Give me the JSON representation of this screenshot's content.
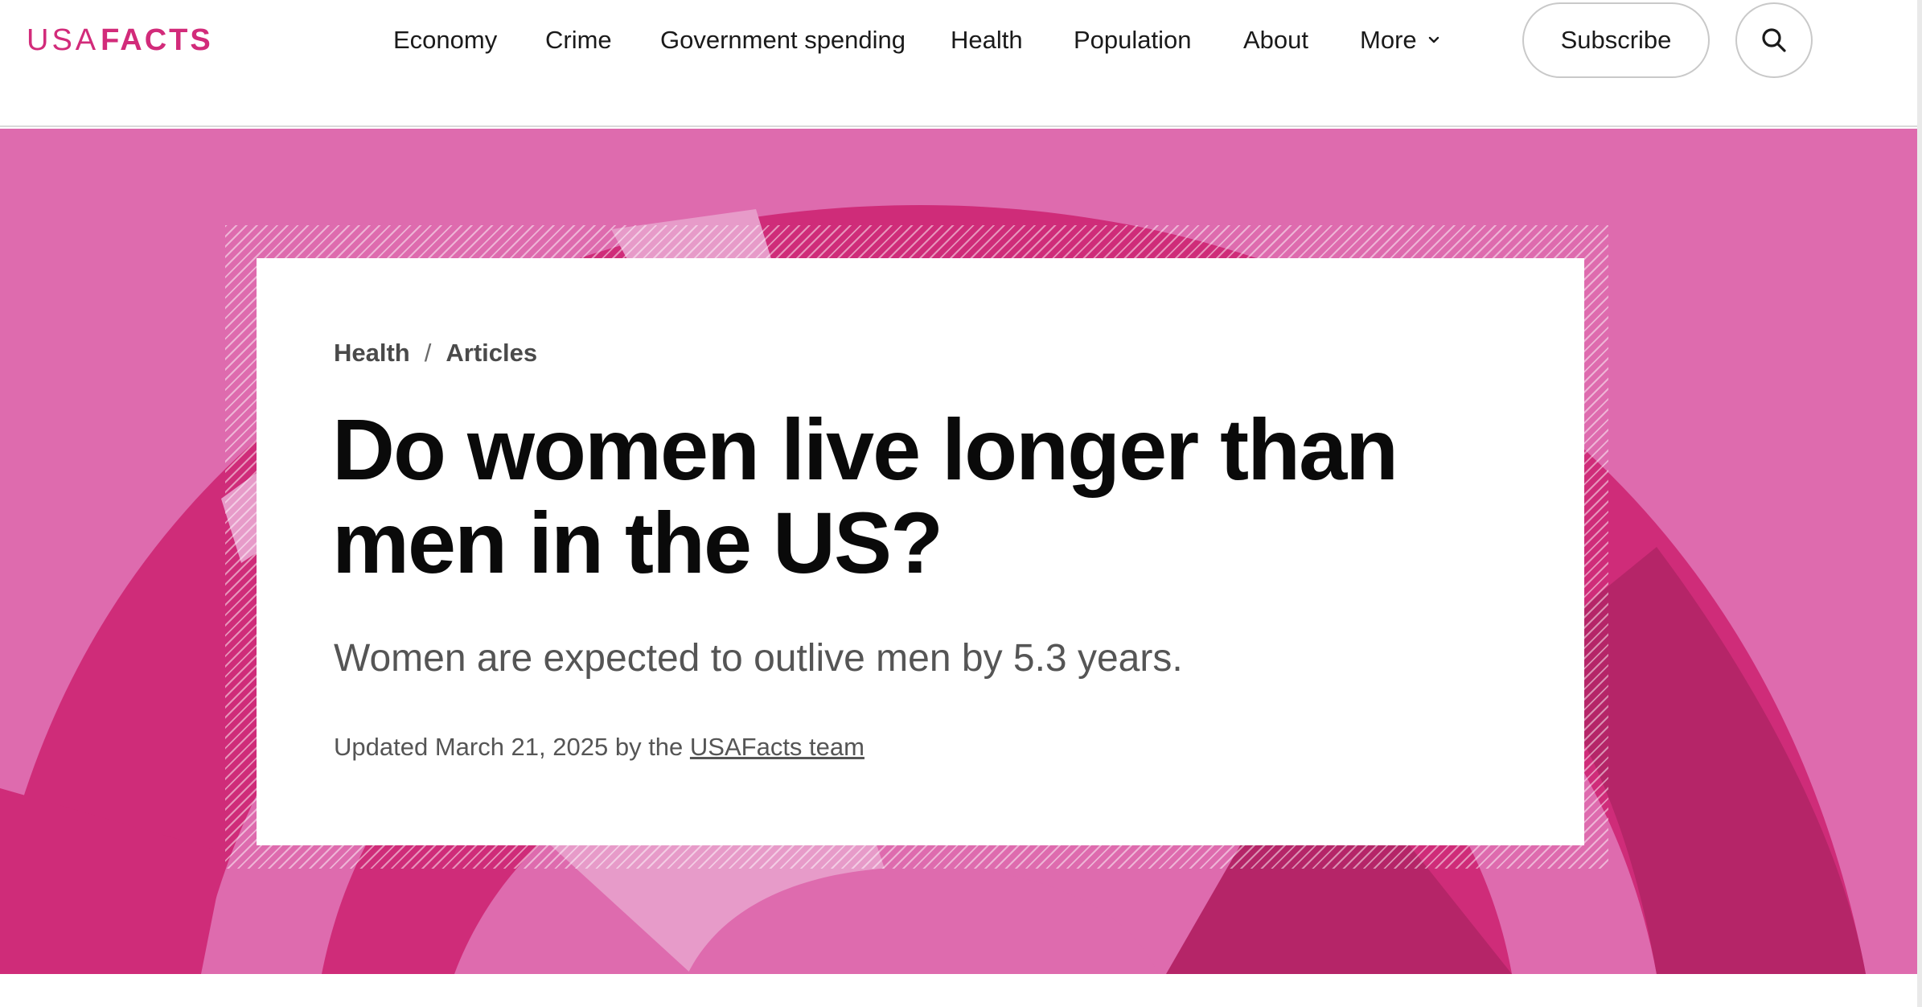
{
  "logo": {
    "usa": "USA",
    "facts": "FACTS"
  },
  "nav": {
    "items": [
      {
        "label": "Economy"
      },
      {
        "label": "Crime"
      },
      {
        "label": "Government spending"
      },
      {
        "label": "Health"
      },
      {
        "label": "Population"
      },
      {
        "label": "About"
      },
      {
        "label": "More"
      }
    ],
    "subscribe_label": "Subscribe"
  },
  "icons": {
    "search": "search-icon",
    "more": "chevron-down-icon"
  },
  "colors": {
    "brand": "#d22b7a",
    "hero_bg": "#de6bae",
    "hero_dark": "#cf2c79",
    "hero_darker": "#b52568",
    "hero_light": "#e79bc9"
  },
  "article": {
    "breadcrumb": [
      "Health",
      "Articles"
    ],
    "breadcrumb_separator": "/",
    "title": "Do women live longer than men in the US?",
    "subtitle": "Women are expected to outlive men by 5.3 years.",
    "byline_prefix": "Updated March 21, 2025 by the",
    "byline_author": "USAFacts team"
  }
}
